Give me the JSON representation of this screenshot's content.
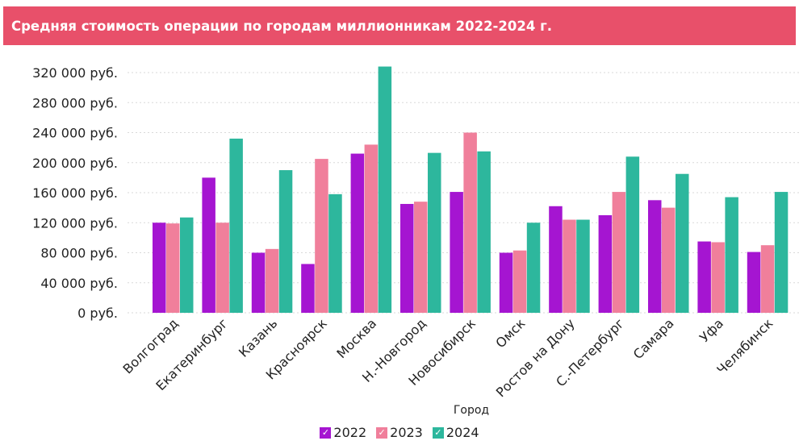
{
  "header": {
    "title": "Средняя стоимость операции по городам миллионникам 2022-2024 г."
  },
  "chart_data": {
    "type": "bar",
    "title": "Средняя стоимость операции по городам миллионникам 2022-2024 г.",
    "xlabel": "Город",
    "ylabel": "",
    "ylim": [
      0,
      320000
    ],
    "yticks": [
      0,
      40000,
      80000,
      120000,
      160000,
      200000,
      240000,
      280000,
      320000
    ],
    "ytick_labels": [
      "0 руб.",
      "40 000 руб.",
      "80 000 руб.",
      "120 000 руб.",
      "160 000 руб.",
      "200 000 руб.",
      "240 000 руб.",
      "280 000 руб.",
      "320 000 руб."
    ],
    "grid": true,
    "legend_position": "bottom",
    "categories": [
      "Волгоград",
      "Екатеринбург",
      "Казань",
      "Красноярск",
      "Москва",
      "Н.-Новгород",
      "Новосибирск",
      "Омск",
      "Ростов на Дону",
      "С.-Петербург",
      "Самара",
      "Уфа",
      "Челябинск"
    ],
    "series": [
      {
        "name": "2022",
        "color": "#a515d1",
        "values": [
          120000,
          180000,
          80000,
          65000,
          212000,
          145000,
          161000,
          80000,
          142000,
          130000,
          150000,
          95000,
          81000
        ]
      },
      {
        "name": "2023",
        "color": "#f07f9b",
        "values": [
          119000,
          120000,
          85000,
          205000,
          224000,
          148000,
          240000,
          83000,
          124000,
          161000,
          140000,
          94000,
          90000
        ]
      },
      {
        "name": "2024",
        "color": "#2db79d",
        "values": [
          127000,
          232000,
          190000,
          158000,
          328000,
          213000,
          215000,
          120000,
          124000,
          208000,
          185000,
          154000,
          161000
        ]
      }
    ]
  },
  "legend": {
    "check_icon": "checkmark-icon",
    "check_glyph": "✓"
  }
}
